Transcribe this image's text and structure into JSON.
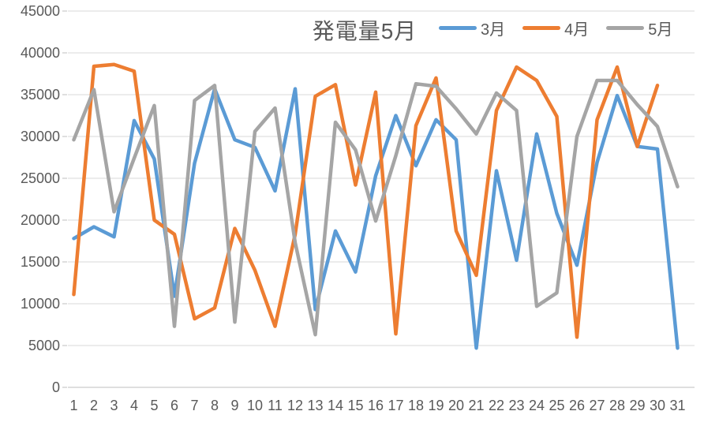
{
  "chart_data": {
    "type": "line",
    "title": "発電量5月",
    "x_labels": [
      "1",
      "2",
      "3",
      "4",
      "5",
      "6",
      "7",
      "8",
      "9",
      "10",
      "11",
      "12",
      "13",
      "14",
      "15",
      "16",
      "17",
      "18",
      "19",
      "20",
      "21",
      "22",
      "23",
      "24",
      "25",
      "26",
      "27",
      "28",
      "29",
      "30",
      "31"
    ],
    "y_tick_labels": [
      "0",
      "5000",
      "10000",
      "15000",
      "20000",
      "25000",
      "30000",
      "35000",
      "40000",
      "45000"
    ],
    "ylim": [
      0,
      45000
    ],
    "ytick_step": 5000,
    "grid": true,
    "legend_position": "top-right",
    "series": [
      {
        "name": "3月",
        "color": "#5B9BD5",
        "values": [
          17800,
          19200,
          18000,
          31900,
          27300,
          10900,
          26800,
          35700,
          29600,
          28700,
          23500,
          35700,
          9300,
          18700,
          13800,
          25300,
          32500,
          26500,
          32000,
          29600,
          4700,
          25900,
          15200,
          30300,
          20800,
          14600,
          26900,
          34900,
          28800,
          28500,
          4700
        ]
      },
      {
        "name": "4月",
        "color": "#ED7D31",
        "values": [
          11100,
          38400,
          38600,
          37800,
          20000,
          18300,
          8200,
          9500,
          19000,
          14000,
          7300,
          18300,
          34800,
          36200,
          24200,
          35300,
          6400,
          31300,
          37000,
          18700,
          13400,
          33100,
          38300,
          36700,
          32400,
          6000,
          32000,
          38300,
          28800,
          36100
        ]
      },
      {
        "name": "5月",
        "color": "#A5A5A5",
        "values": [
          29600,
          35600,
          21000,
          27400,
          33700,
          7300,
          34300,
          36100,
          7800,
          30600,
          33400,
          17300,
          6300,
          31700,
          28400,
          19900,
          27700,
          36300,
          36000,
          33300,
          30300,
          35200,
          33100,
          9700,
          11300,
          30000,
          36700,
          36700,
          33800,
          31200,
          24000
        ]
      }
    ]
  },
  "styles": {
    "grid_color": "#D9D9D9",
    "axis_color": "#BFBFBF",
    "label_color": "#595959",
    "background": "#FFFFFF"
  }
}
